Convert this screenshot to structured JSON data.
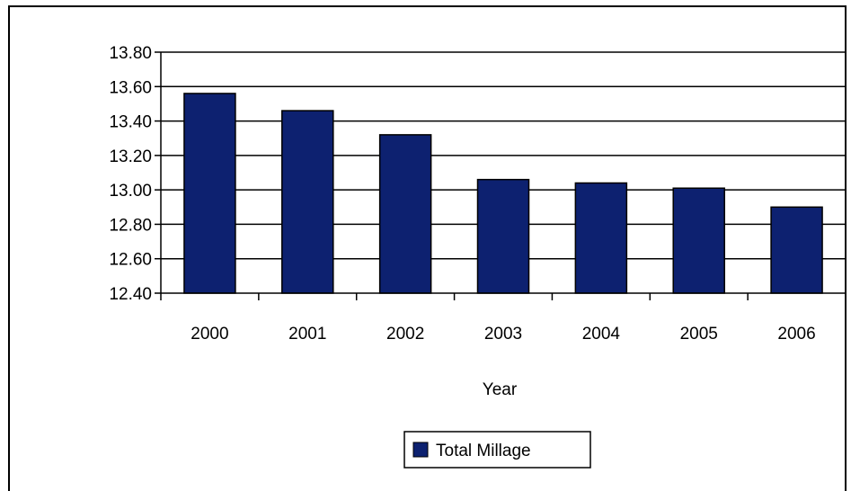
{
  "chart_data": {
    "type": "bar",
    "title": "",
    "xlabel": "Year",
    "ylabel": "",
    "categories": [
      "2000",
      "2001",
      "2002",
      "2003",
      "2004",
      "2005",
      "2006"
    ],
    "series": [
      {
        "name": "Total Millage",
        "values": [
          13.56,
          13.46,
          13.32,
          13.06,
          13.04,
          13.01,
          12.9
        ]
      }
    ],
    "ylim": [
      12.4,
      13.8
    ],
    "yticks": [
      "12.40",
      "12.60",
      "12.80",
      "13.00",
      "13.20",
      "13.40",
      "13.60",
      "13.80"
    ],
    "grid": true,
    "legend": "bottom",
    "colors": {
      "bar_fill": "#0d2170",
      "bar_stroke": "#000000",
      "gridline": "#000000"
    }
  }
}
